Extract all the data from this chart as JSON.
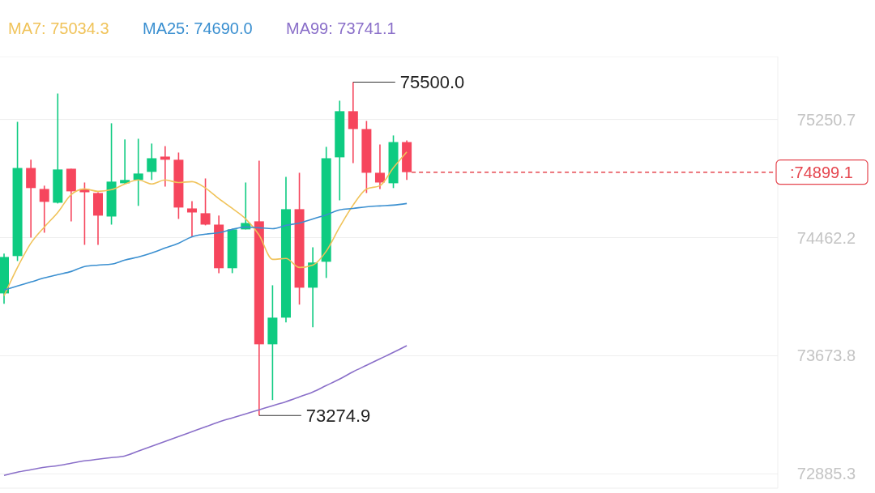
{
  "chart_data": {
    "type": "candlestick",
    "categories": [
      null,
      null,
      null,
      null,
      null,
      null,
      null,
      null,
      null,
      null,
      null,
      null,
      null,
      null,
      null,
      null,
      null,
      null,
      null,
      null,
      null,
      null,
      null,
      null,
      null,
      null,
      null,
      null,
      null,
      null,
      null
    ],
    "ohlc": [
      [
        74090,
        74355,
        74020,
        74333
      ],
      [
        74339,
        75235,
        74306,
        74927
      ],
      [
        74927,
        74982,
        74463,
        74793
      ],
      [
        74787,
        74809,
        74495,
        74701
      ],
      [
        74695,
        75424,
        74690,
        74917
      ],
      [
        74922,
        74922,
        74571,
        74771
      ],
      [
        74787,
        74830,
        74414,
        74765
      ],
      [
        74760,
        74765,
        74414,
        74609
      ],
      [
        74603,
        75225,
        74549,
        74836
      ],
      [
        74825,
        75117,
        74820,
        74847
      ],
      [
        74847,
        75122,
        74674,
        74890
      ],
      [
        74901,
        75090,
        74847,
        74992
      ],
      [
        75003,
        75073,
        74803,
        74982
      ],
      [
        74982,
        75030,
        74587,
        74663
      ],
      [
        74657,
        74706,
        74468,
        74630
      ],
      [
        74625,
        74857,
        74544,
        74549
      ],
      [
        74549,
        74609,
        74225,
        74258
      ],
      [
        74258,
        74522,
        74225,
        74517
      ],
      [
        74517,
        74830,
        74517,
        74560
      ],
      [
        74571,
        74976,
        73274.9,
        73750
      ],
      [
        73750,
        74144,
        73378,
        73928
      ],
      [
        73928,
        74868,
        73896,
        74652
      ],
      [
        74652,
        74895,
        74015,
        74128
      ],
      [
        74128,
        74398,
        73864,
        74296
      ],
      [
        74301,
        75068,
        74193,
        74992
      ],
      [
        74998,
        75376,
        74711,
        75306
      ],
      [
        75306,
        75500,
        74960,
        75187
      ],
      [
        75187,
        75241,
        74760,
        74895
      ],
      [
        74895,
        75084,
        74787,
        74830
      ],
      [
        74825,
        75144,
        74793,
        75100
      ],
      [
        75100,
        75111,
        74847,
        74899.1
      ]
    ],
    "colors": [
      "#0ecb81",
      "#0ecb81",
      "#f6465d",
      "#f6465d",
      "#0ecb81",
      "#f6465d",
      "#f6465d",
      "#f6465d",
      "#0ecb81",
      "#0ecb81",
      "#0ecb81",
      "#0ecb81",
      "#f6465d",
      "#f6465d",
      "#f6465d",
      "#f6465d",
      "#f6465d",
      "#0ecb81",
      "#0ecb81",
      "#f6465d",
      "#0ecb81",
      "#0ecb81",
      "#f6465d",
      "#0ecb81",
      "#0ecb81",
      "#0ecb81",
      "#f6465d",
      "#f6465d",
      "#f6465d",
      "#0ecb81",
      "#f6465d"
    ],
    "series": [
      {
        "type": "line",
        "name": "MA7: 75034.3",
        "color": "#f0c35a",
        "values": [
          74074,
          74263,
          74425,
          74533,
          74630,
          74749,
          74787,
          74771,
          74782,
          74820,
          74847,
          74820,
          74847,
          74830,
          74836,
          74793,
          74722,
          74657,
          74587,
          74479,
          74317,
          74323,
          74263,
          74279,
          74371,
          74533,
          74679,
          74787,
          74809,
          74928,
          75034
        ]
      },
      {
        "type": "line",
        "name": "MA25: 74690.0",
        "color": "#3a8fd0",
        "values": [
          74112,
          74139,
          74166,
          74193,
          74215,
          74236,
          74269,
          74279,
          74285,
          74312,
          74333,
          74360,
          74393,
          74425,
          74468,
          74485,
          74495,
          74517,
          74533,
          74528,
          74522,
          74544,
          74560,
          74587,
          74614,
          74647,
          74657,
          74668,
          74674,
          74679,
          74690
        ]
      },
      {
        "type": "line",
        "name": "MA99: 73741.1",
        "color": "#8a6fc9",
        "values": [
          72875,
          72897,
          72913,
          72929,
          72940,
          72956,
          72972,
          72983,
          72994,
          73005,
          73037,
          73070,
          73102,
          73135,
          73167,
          73199,
          73232,
          73259,
          73286,
          73313,
          73340,
          73367,
          73399,
          73432,
          73475,
          73518,
          73567,
          73610,
          73653,
          73696,
          73741
        ]
      }
    ],
    "ylim": [
      72790,
      75670
    ],
    "yticks": [
      75250.7,
      74462.2,
      73673.8,
      72885.3
    ],
    "annotations": [
      "75500.0",
      "73274.9"
    ],
    "ref_lines": [
      {
        "axis": "y",
        "value": 74899.1,
        "label": ":74899.1",
        "color": "#e5464f",
        "line_style": "dashed"
      }
    ],
    "grid": "y",
    "legend": "top",
    "tick_labels": "y",
    "line_style": "solid",
    "marker": "none"
  }
}
